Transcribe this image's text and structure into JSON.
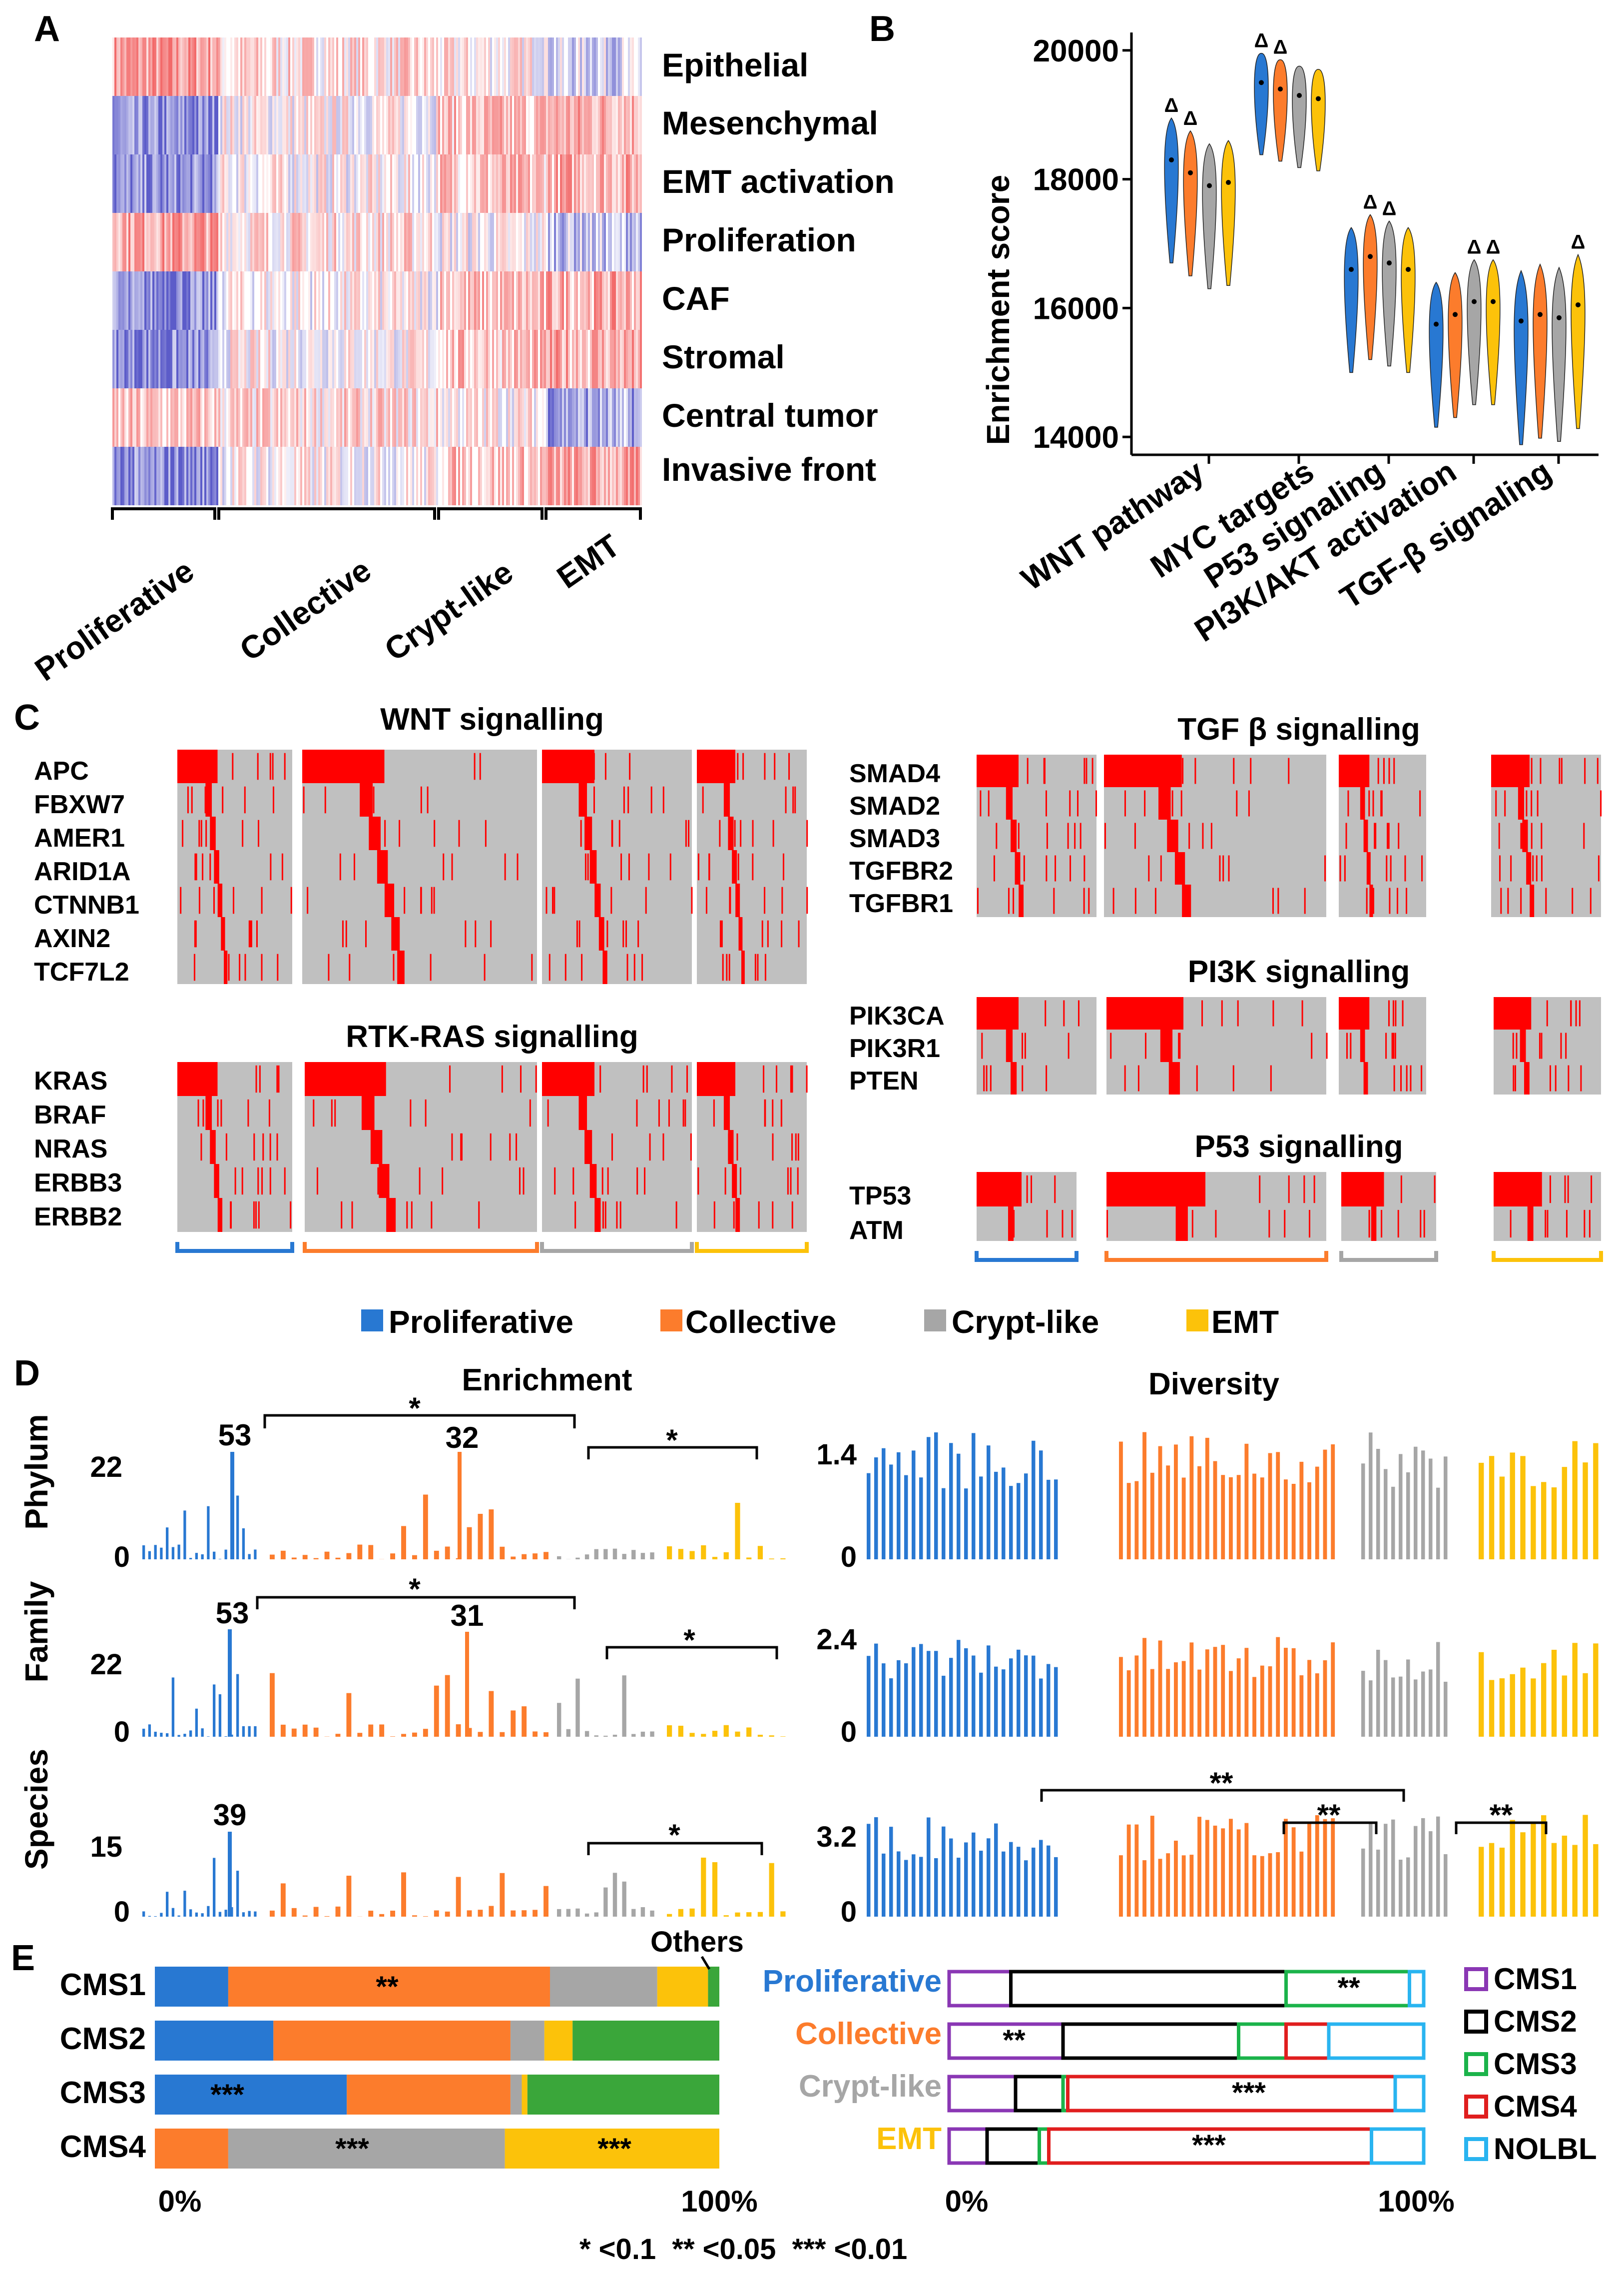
{
  "colors": {
    "proliferative": "#2878d2",
    "collective": "#fc7c2c",
    "crypt": "#a6a6a6",
    "emt": "#fcc20a",
    "cms3": "#3aa63a",
    "cms_purple": "#8a37b4",
    "cms_black": "#000000",
    "cms_green": "#1bb34a",
    "cms_red": "#e01e1e",
    "cms_blue": "#29b4f0",
    "mut_red": "#ff0000",
    "mut_grey": "#c0c0c0",
    "heat_blue": "#4040c0",
    "heat_red": "#f05050"
  },
  "panel_a": {
    "letter": "A",
    "rows": [
      "Epithelial",
      "Mesenchymal",
      "EMT activation",
      "Proliferation",
      "CAF",
      "Stromal",
      "Central tumor",
      "Invasive front"
    ],
    "groups": [
      "Proliferative",
      "Collective",
      "Crypt-like",
      "EMT"
    ]
  },
  "panel_b": {
    "letter": "B",
    "ylabel": "Enrichment score",
    "marker": "Δ"
  },
  "chart_data": [
    {
      "type": "violin",
      "panel": "B",
      "ylabel": "Enrichment score",
      "ylim": [
        13800,
        20200
      ],
      "yticks": [
        14000,
        16000,
        18000,
        20000
      ],
      "categories": [
        "WNT pathway",
        "MYC targets",
        "P53 signaling",
        "PI3K/AKT activation",
        "TGF-β signaling"
      ],
      "series": [
        {
          "name": "Proliferative",
          "medians": [
            18300,
            19500,
            16600,
            15750,
            15800
          ]
        },
        {
          "name": "Collective",
          "medians": [
            18100,
            19400,
            16800,
            15900,
            15900
          ]
        },
        {
          "name": "Crypt-like",
          "medians": [
            17900,
            19300,
            16700,
            16100,
            15850
          ]
        },
        {
          "name": "EMT",
          "medians": [
            17950,
            19250,
            16600,
            16100,
            16050
          ]
        }
      ],
      "significance_markers": [
        {
          "category": "WNT pathway",
          "groups": [
            "Proliferative",
            "Collective"
          ]
        },
        {
          "category": "MYC targets",
          "groups": [
            "Proliferative",
            "Collective"
          ]
        },
        {
          "category": "P53 signaling",
          "groups": [
            "Collective",
            "Crypt-like"
          ]
        },
        {
          "category": "PI3K/AKT activation",
          "groups": [
            "Crypt-like",
            "EMT"
          ]
        },
        {
          "category": "TGF-β signaling",
          "groups": [
            "EMT"
          ]
        }
      ]
    },
    {
      "type": "bar",
      "panel": "D",
      "title": "Enrichment",
      "rows": [
        {
          "label": "Phylum",
          "ymax_label": "22",
          "peaks": [
            {
              "group": "Proliferative",
              "label": "53"
            },
            {
              "group": "Collective",
              "label": "32"
            }
          ]
        },
        {
          "label": "Family",
          "ymax_label": "22",
          "peaks": [
            {
              "group": "Proliferative",
              "label": "53"
            },
            {
              "group": "Collective",
              "label": "31"
            }
          ]
        },
        {
          "label": "Species",
          "ymax_label": "15",
          "peaks": [
            {
              "group": "Proliferative",
              "label": "39"
            }
          ]
        }
      ]
    },
    {
      "type": "bar",
      "panel": "D",
      "title": "Diversity",
      "rows": [
        {
          "label": "Phylum",
          "ymax_label": "1.4"
        },
        {
          "label": "Family",
          "ymax_label": "2.4"
        },
        {
          "label": "Species",
          "ymax_label": "3.2"
        }
      ]
    },
    {
      "type": "stacked_bar",
      "panel": "E-left",
      "categories": [
        "CMS1",
        "CMS2",
        "CMS3",
        "CMS4"
      ],
      "series": [
        {
          "name": "Proliferative",
          "values": [
            13,
            21,
            34,
            0
          ]
        },
        {
          "name": "Collective",
          "values": [
            57,
            42,
            29,
            13
          ]
        },
        {
          "name": "Crypt-like",
          "values": [
            19,
            6,
            2,
            49
          ]
        },
        {
          "name": "EMT",
          "values": [
            9,
            5,
            1,
            38
          ]
        },
        {
          "name": "Others",
          "values": [
            2,
            26,
            34,
            0
          ]
        }
      ],
      "stars": [
        "**",
        "",
        "***",
        "***"
      ],
      "xlabels": [
        "0%",
        "100%"
      ],
      "annotation": "Others"
    },
    {
      "type": "stacked_bar",
      "panel": "E-right",
      "categories": [
        "Proliferative",
        "Collective",
        "Crypt-like",
        "EMT"
      ],
      "series": [
        {
          "name": "CMS1",
          "values": [
            13,
            24,
            14,
            8
          ]
        },
        {
          "name": "CMS2",
          "values": [
            58,
            37,
            10,
            11
          ]
        },
        {
          "name": "CMS3",
          "values": [
            26,
            10,
            1,
            2
          ]
        },
        {
          "name": "CMS4",
          "values": [
            0,
            9,
            69,
            68
          ]
        },
        {
          "name": "NOLBL",
          "values": [
            3,
            20,
            6,
            11
          ]
        }
      ],
      "stars": [
        "**",
        "**",
        "***",
        "***"
      ],
      "xlabels": [
        "0%",
        "100%"
      ]
    }
  ],
  "panel_c": {
    "letter": "C",
    "subpanels": [
      {
        "title": "WNT signalling",
        "genes": [
          "APC",
          "FBXW7",
          "AMER1",
          "ARID1A",
          "CTNNB1",
          "AXIN2",
          "TCF7L2"
        ]
      },
      {
        "title": "RTK-RAS signalling",
        "genes": [
          "KRAS",
          "BRAF",
          "NRAS",
          "ERBB3",
          "ERBB2"
        ]
      },
      {
        "title": "TGF β signalling",
        "genes": [
          "SMAD4",
          "SMAD2",
          "SMAD3",
          "TGFBR2",
          "TGFBR1"
        ]
      },
      {
        "title": "PI3K signalling",
        "genes": [
          "PIK3CA",
          "PIK3R1",
          "PTEN"
        ]
      },
      {
        "title": "P53 signalling",
        "genes": [
          "TP53",
          "ATM"
        ]
      }
    ]
  },
  "legend": [
    "Proliferative",
    "Collective",
    "Crypt-like",
    "EMT"
  ],
  "panel_d": {
    "letter": "D",
    "enrichment_title": "Enrichment",
    "diversity_title": "Diversity",
    "star": "*",
    "double_star": "**"
  },
  "panel_e": {
    "letter": "E",
    "right_labels": [
      "Proliferative",
      "Collective",
      "Crypt-like",
      "EMT"
    ],
    "cms_legend": [
      "CMS1",
      "CMS2",
      "CMS3",
      "CMS4",
      "NOLBL"
    ],
    "footnote": "* <0.1  ** <0.05  *** <0.01"
  }
}
